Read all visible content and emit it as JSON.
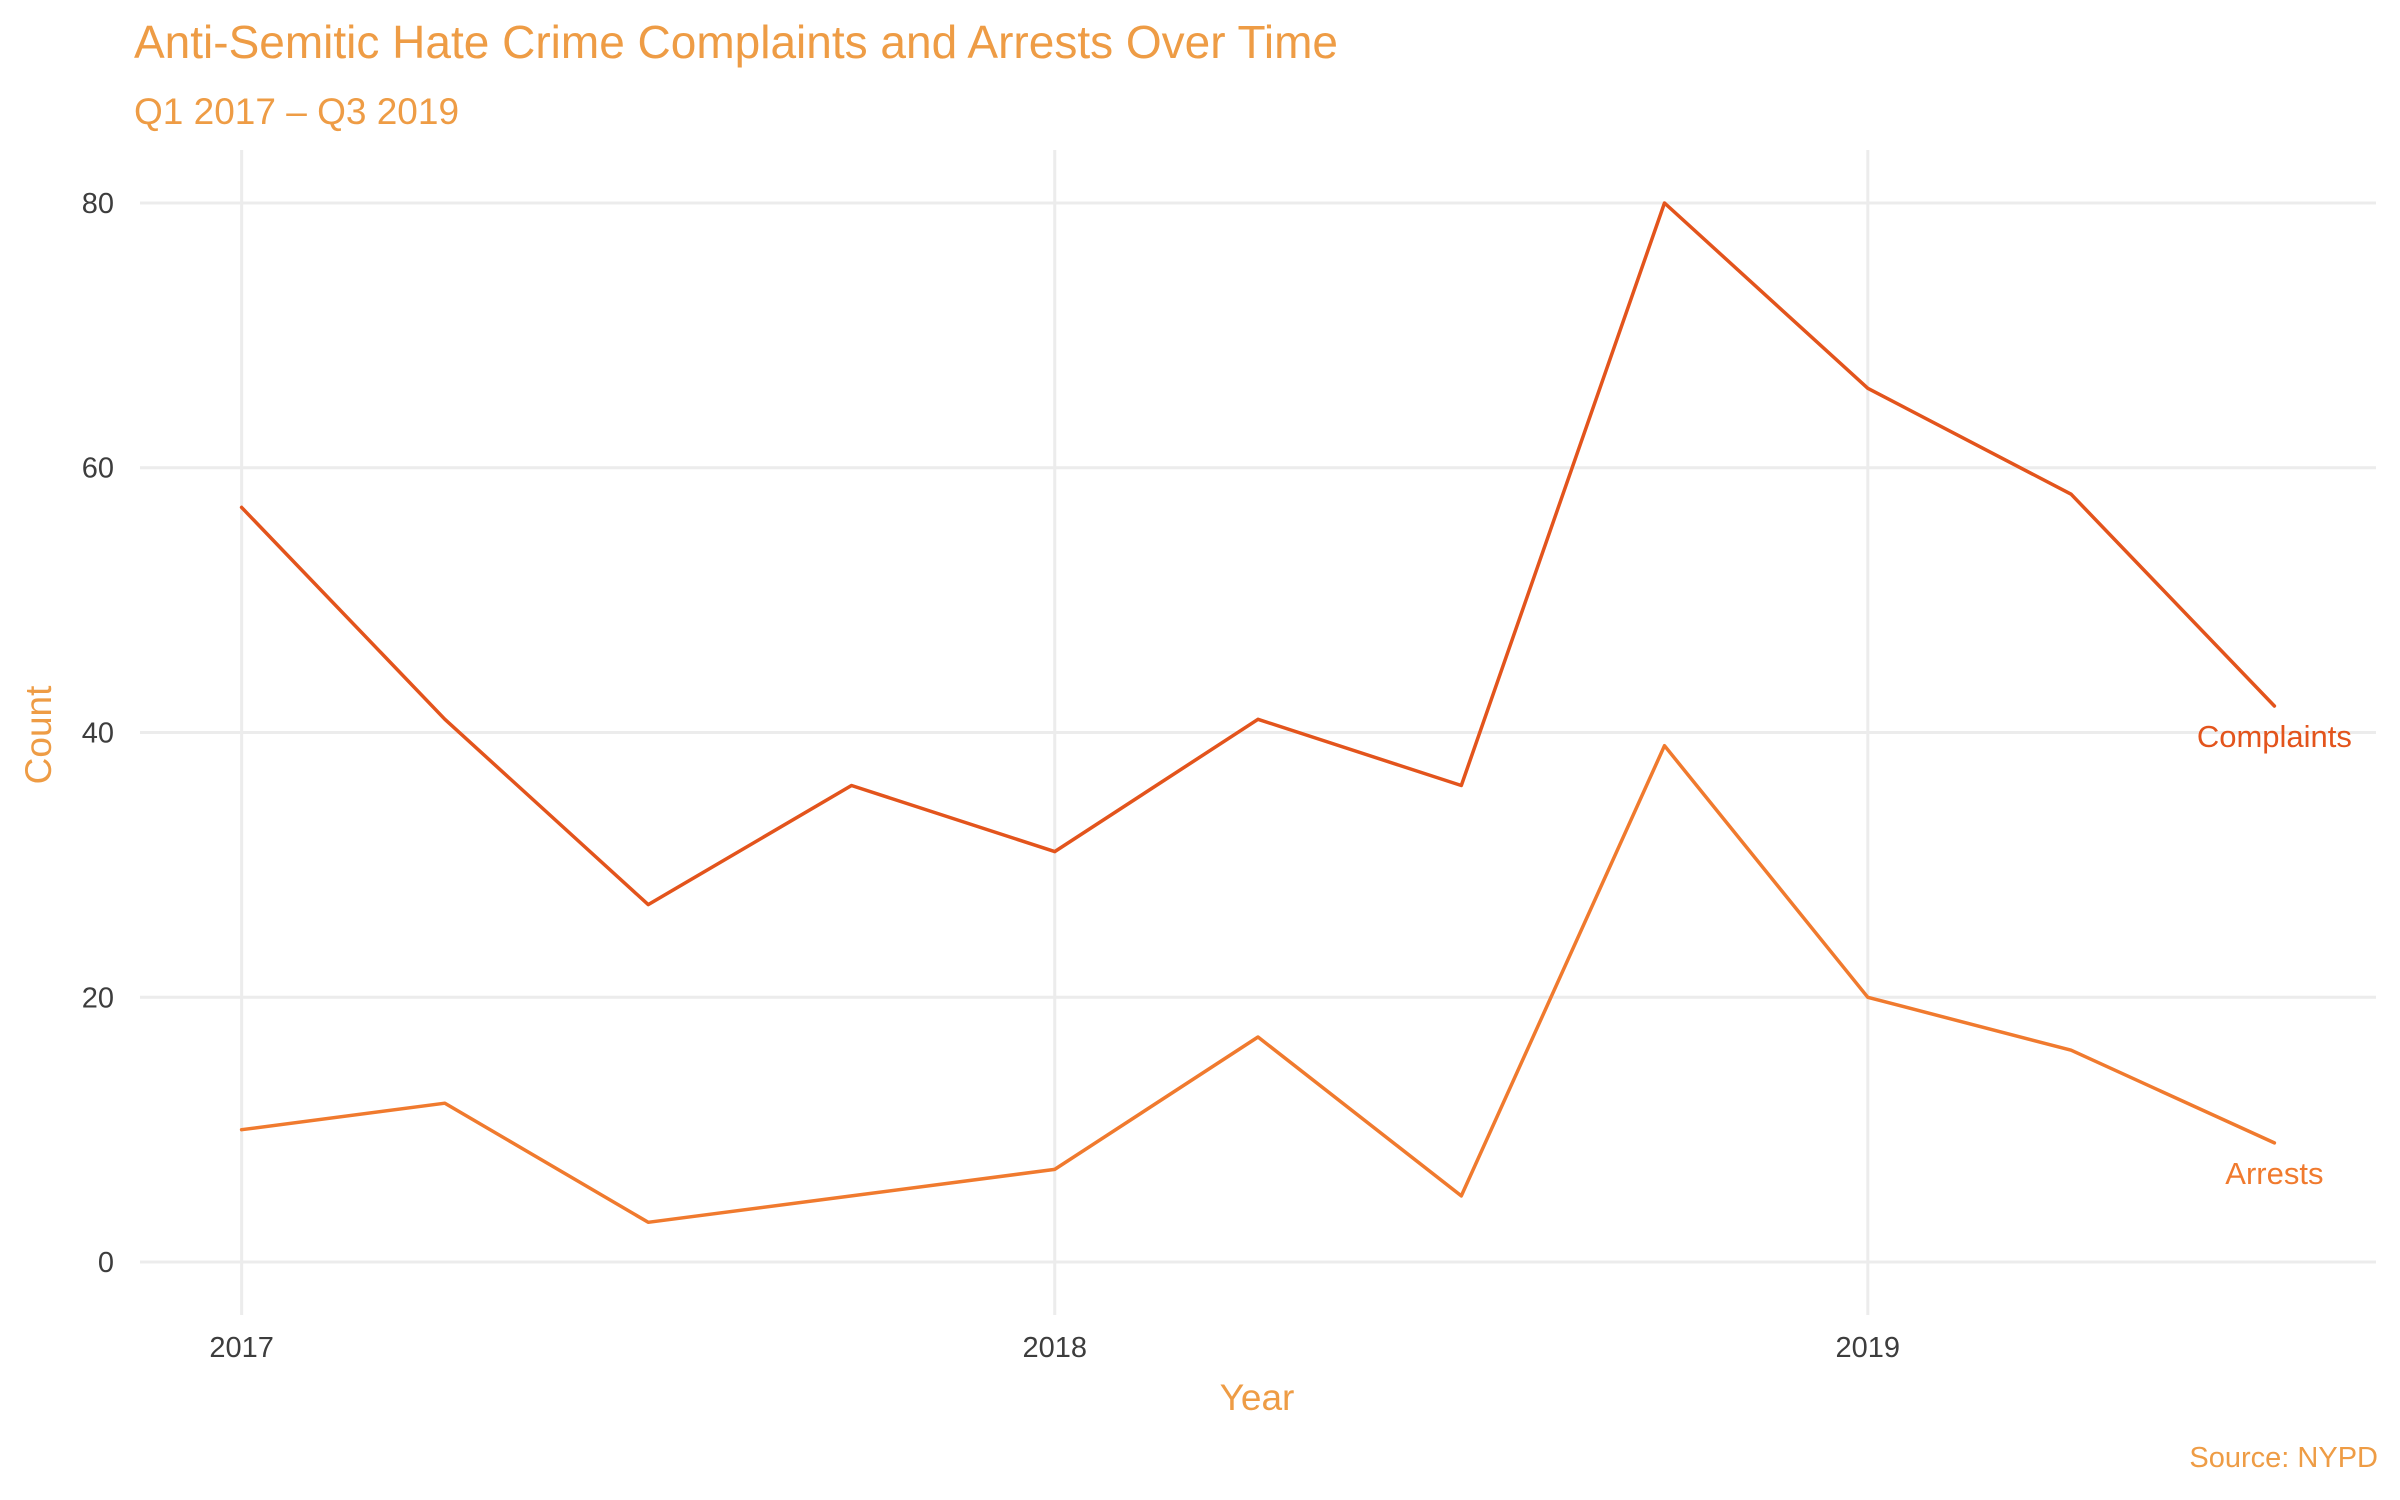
{
  "chart_data": {
    "type": "line",
    "title": "Anti-Semitic Hate Crime Complaints and Arrests Over Time",
    "subtitle": "Q1 2017 – Q3 2019",
    "xlabel": "Year",
    "ylabel": "Count",
    "caption": "Source: NYPD",
    "x": [
      2017.0,
      2017.25,
      2017.5,
      2017.75,
      2018.0,
      2018.25,
      2018.5,
      2018.75,
      2019.0,
      2019.25,
      2019.5
    ],
    "x_ticks": [
      2017,
      2018,
      2019
    ],
    "y_ticks": [
      0,
      20,
      40,
      60,
      80
    ],
    "xlim": [
      2016.875,
      2019.625
    ],
    "ylim": [
      -4,
      84
    ],
    "grid": true,
    "legend": "none (direct labels at line ends)",
    "series": [
      {
        "name": "Complaints",
        "color": "#E3541C",
        "values": [
          57,
          41,
          27,
          36,
          31,
          41,
          36,
          80,
          66,
          58,
          42
        ]
      },
      {
        "name": "Arrests",
        "color": "#F07A2E",
        "values": [
          10,
          12,
          3,
          5,
          7,
          17,
          5,
          39,
          20,
          16,
          9
        ]
      }
    ]
  }
}
